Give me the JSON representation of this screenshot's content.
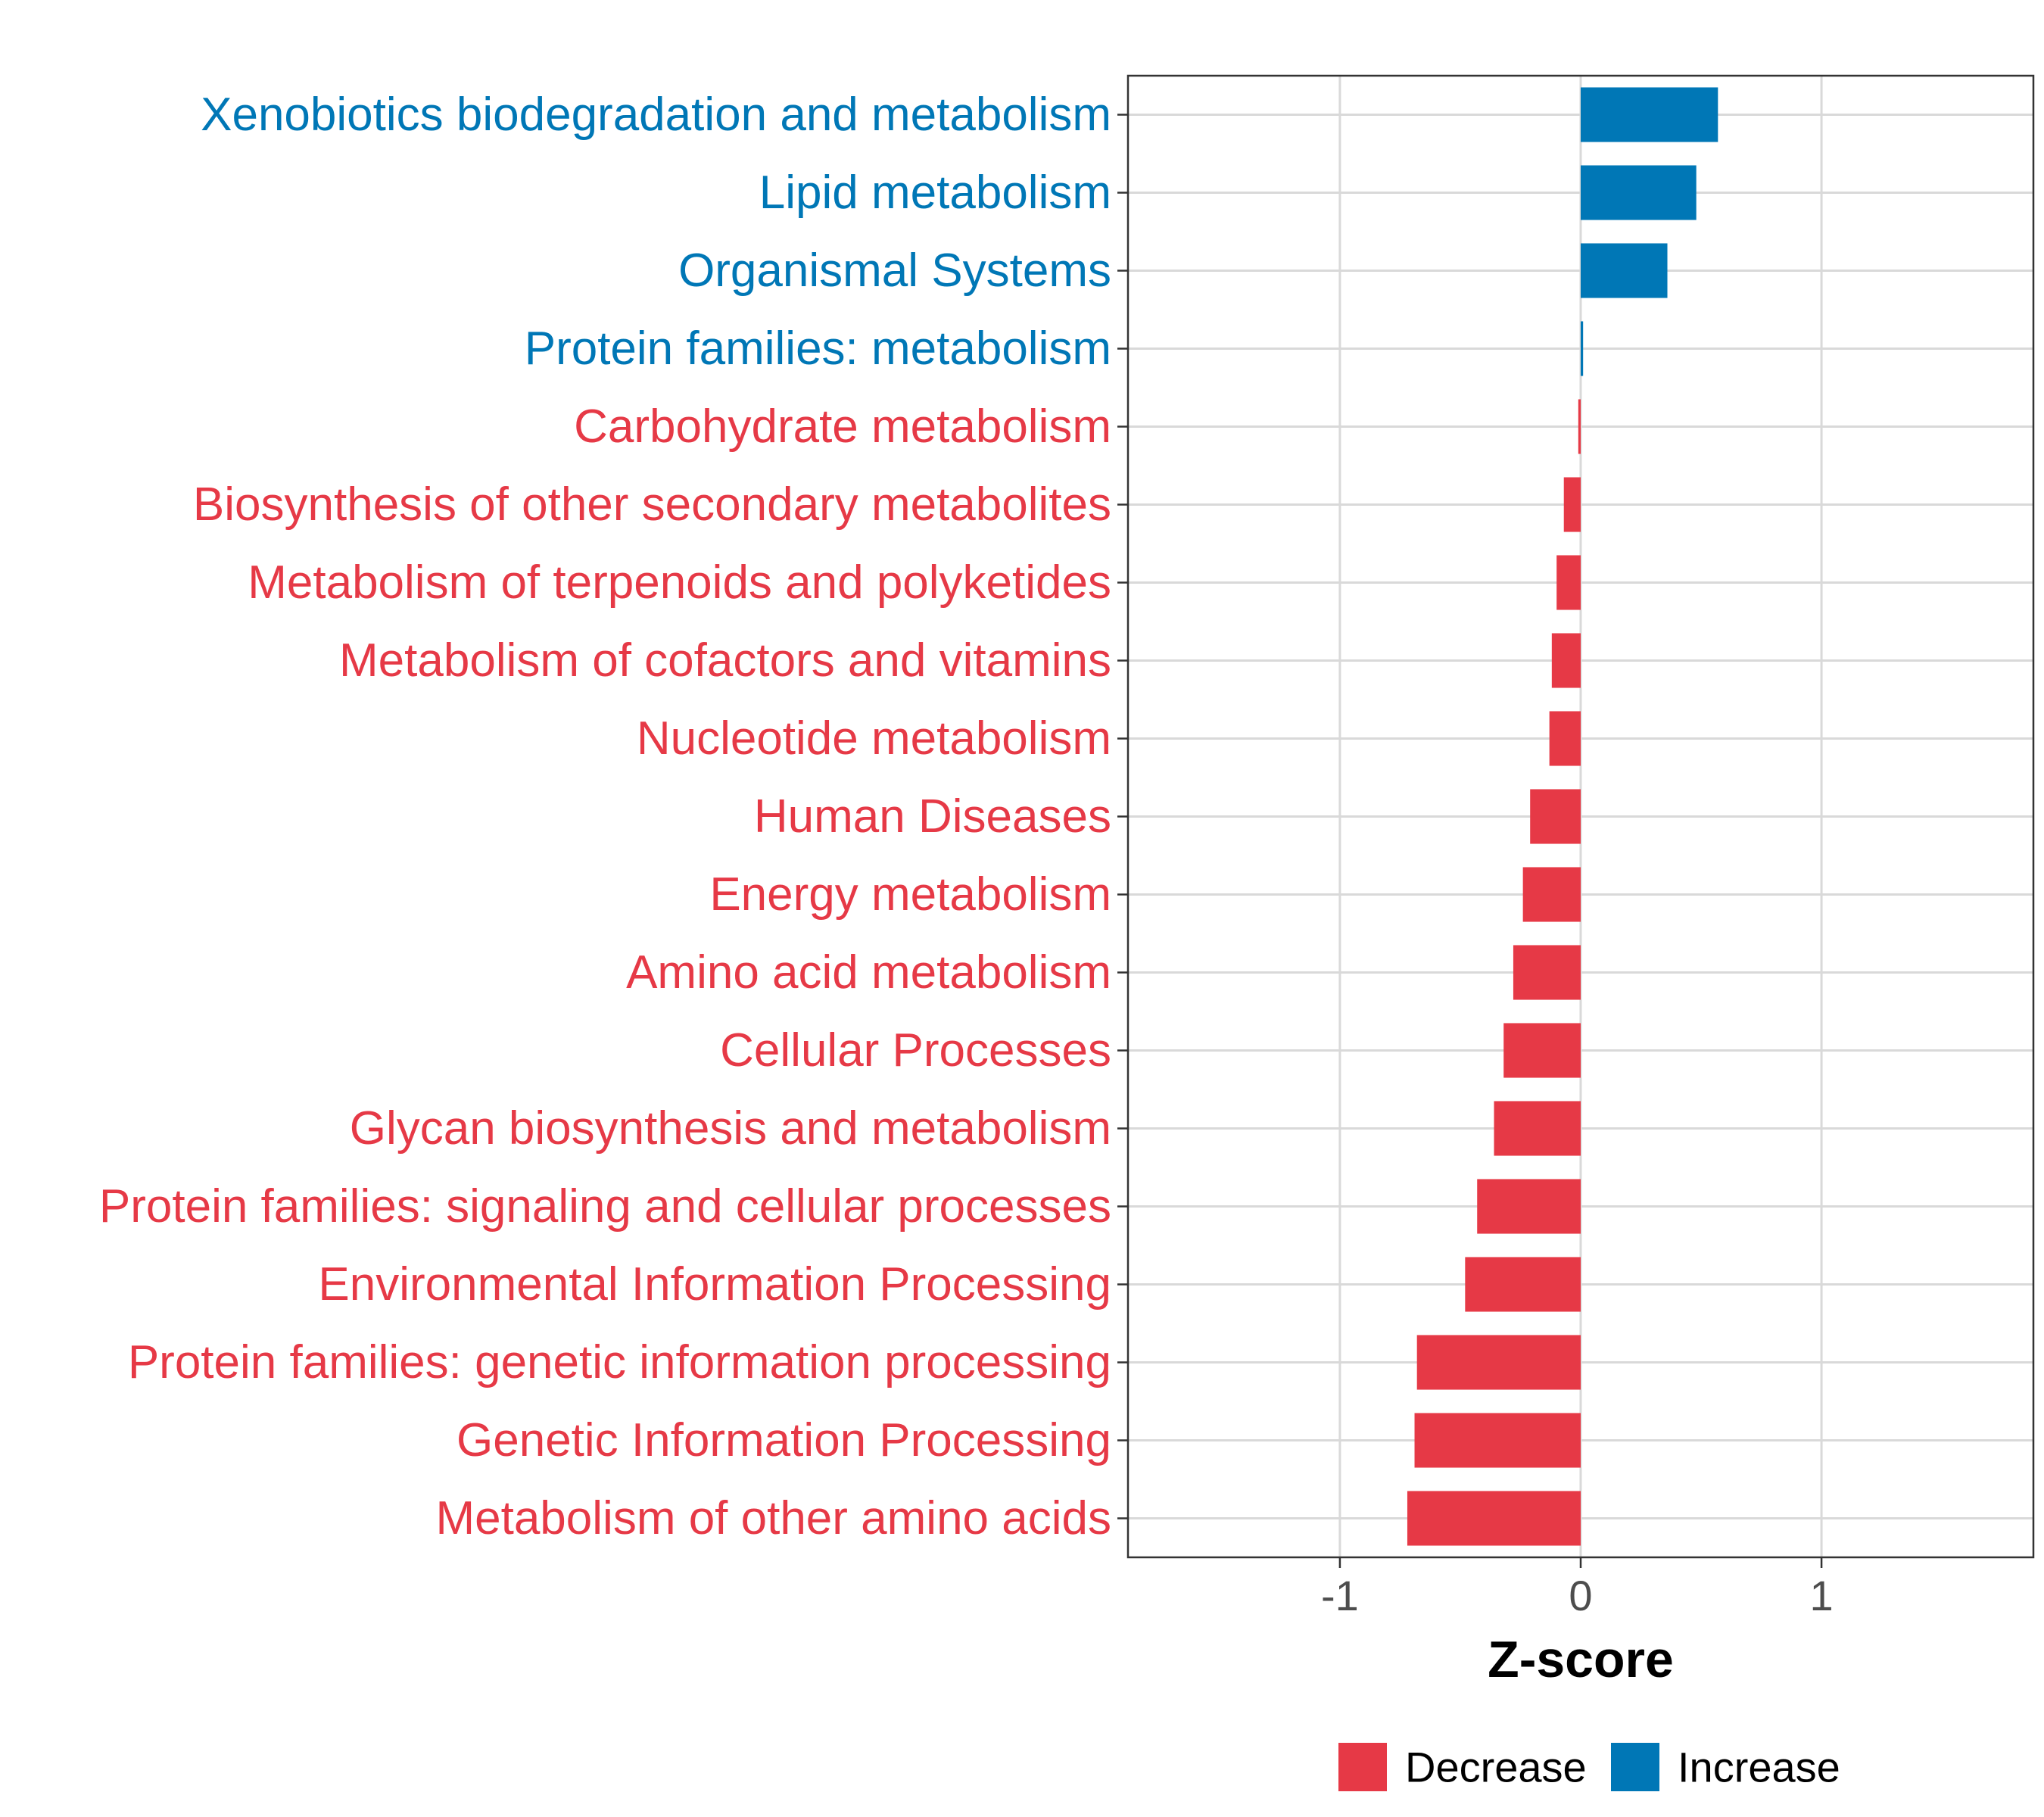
{
  "chart_data": {
    "type": "bar",
    "orientation": "horizontal",
    "title": "",
    "xlabel": "Z-score",
    "ylabel": "",
    "xlim": [
      -1.88,
      1.88
    ],
    "xticks": [
      -1,
      0,
      1
    ],
    "xtick_labels": [
      "-1",
      "0",
      "1"
    ],
    "grid": true,
    "legend_position": "bottom",
    "colors": {
      "Decrease": "#e63946",
      "Increase": "#0077b6"
    },
    "legend": [
      {
        "name": "Decrease",
        "color": "#e63946"
      },
      {
        "name": "Increase",
        "color": "#0077b6"
      }
    ],
    "categories": [
      "Xenobiotics biodegradation and metabolism",
      "Lipid metabolism",
      "Organismal Systems",
      "Protein families: metabolism",
      "Carbohydrate metabolism",
      "Biosynthesis of other secondary metabolites",
      "Metabolism of terpenoids and polyketides",
      "Metabolism of cofactors and vitamins",
      "Nucleotide metabolism",
      "Human Diseases",
      "Energy metabolism",
      "Amino acid metabolism",
      "Cellular Processes",
      "Glycan biosynthesis and metabolism",
      "Protein families: signaling and cellular processes",
      "Environmental Information Processing",
      "Protein families: genetic information processing",
      "Genetic Information Processing",
      "Metabolism of other amino acids"
    ],
    "values": [
      0.57,
      0.48,
      0.36,
      0.01,
      -0.01,
      -0.07,
      -0.1,
      -0.12,
      -0.13,
      -0.21,
      -0.24,
      -0.28,
      -0.32,
      -0.36,
      -0.43,
      -0.48,
      -0.68,
      -0.69,
      -0.72
    ],
    "groups": [
      "Increase",
      "Increase",
      "Increase",
      "Increase",
      "Decrease",
      "Decrease",
      "Decrease",
      "Decrease",
      "Decrease",
      "Decrease",
      "Decrease",
      "Decrease",
      "Decrease",
      "Decrease",
      "Decrease",
      "Decrease",
      "Decrease",
      "Decrease",
      "Decrease"
    ]
  }
}
